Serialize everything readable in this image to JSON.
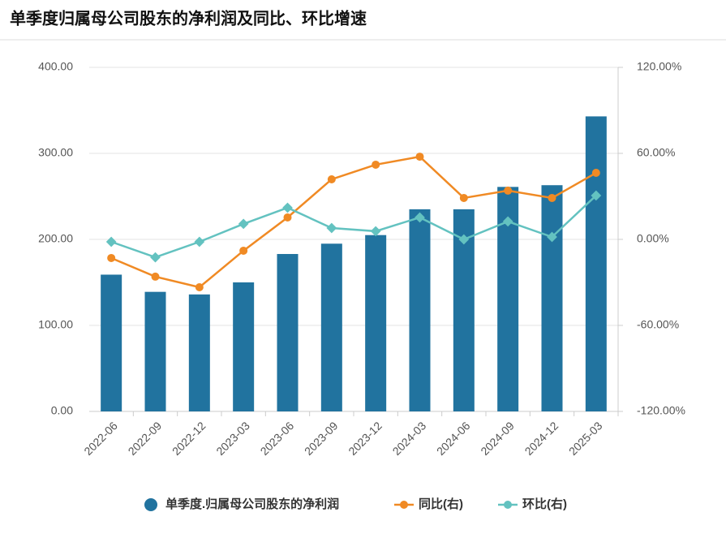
{
  "chart_data": {
    "type": "bar-line",
    "title": "单季度归属母公司股东的净利润及同比、环比增速",
    "categories": [
      "2022-06",
      "2022-09",
      "2022-12",
      "2023-03",
      "2023-06",
      "2023-09",
      "2023-12",
      "2024-03",
      "2024-06",
      "2024-09",
      "2024-12",
      "2025-03"
    ],
    "series": [
      {
        "name": "单季度.归属母公司股东的净利润",
        "type": "bar",
        "color": "#21739f",
        "values": [
          159,
          139,
          136,
          150,
          183,
          195,
          205,
          235,
          235,
          261,
          263,
          343
        ]
      },
      {
        "name": "同比(右)",
        "type": "line",
        "axis": "y2",
        "color": "#f08a24",
        "values": [
          -13.0,
          -26.0,
          -33.4,
          -7.9,
          15.3,
          41.9,
          52.1,
          57.7,
          28.9,
          34.0,
          28.9,
          46.4
        ]
      },
      {
        "name": "环比(右)",
        "type": "line",
        "axis": "y2",
        "color": "#63c2c0",
        "values": [
          -1.7,
          -12.5,
          -1.7,
          10.8,
          22.1,
          7.9,
          5.7,
          15.3,
          0.0,
          12.5,
          1.7,
          30.6
        ]
      }
    ],
    "ylim": [
      0,
      400
    ],
    "yticks": [
      {
        "value": 0,
        "label": "0.00"
      },
      {
        "value": 100,
        "label": "100.00"
      },
      {
        "value": 200,
        "label": "200.00"
      },
      {
        "value": 300,
        "label": "300.00"
      },
      {
        "value": 400,
        "label": "400.00"
      }
    ],
    "y2lim": [
      -120,
      120
    ],
    "y2ticks": [
      {
        "value": -120,
        "label": "-120.00%"
      },
      {
        "value": -60,
        "label": "-60.00%"
      },
      {
        "value": 0,
        "label": "0.00%"
      },
      {
        "value": 60,
        "label": "60.00%"
      },
      {
        "value": 120,
        "label": "120.00%"
      }
    ],
    "grid": true
  }
}
